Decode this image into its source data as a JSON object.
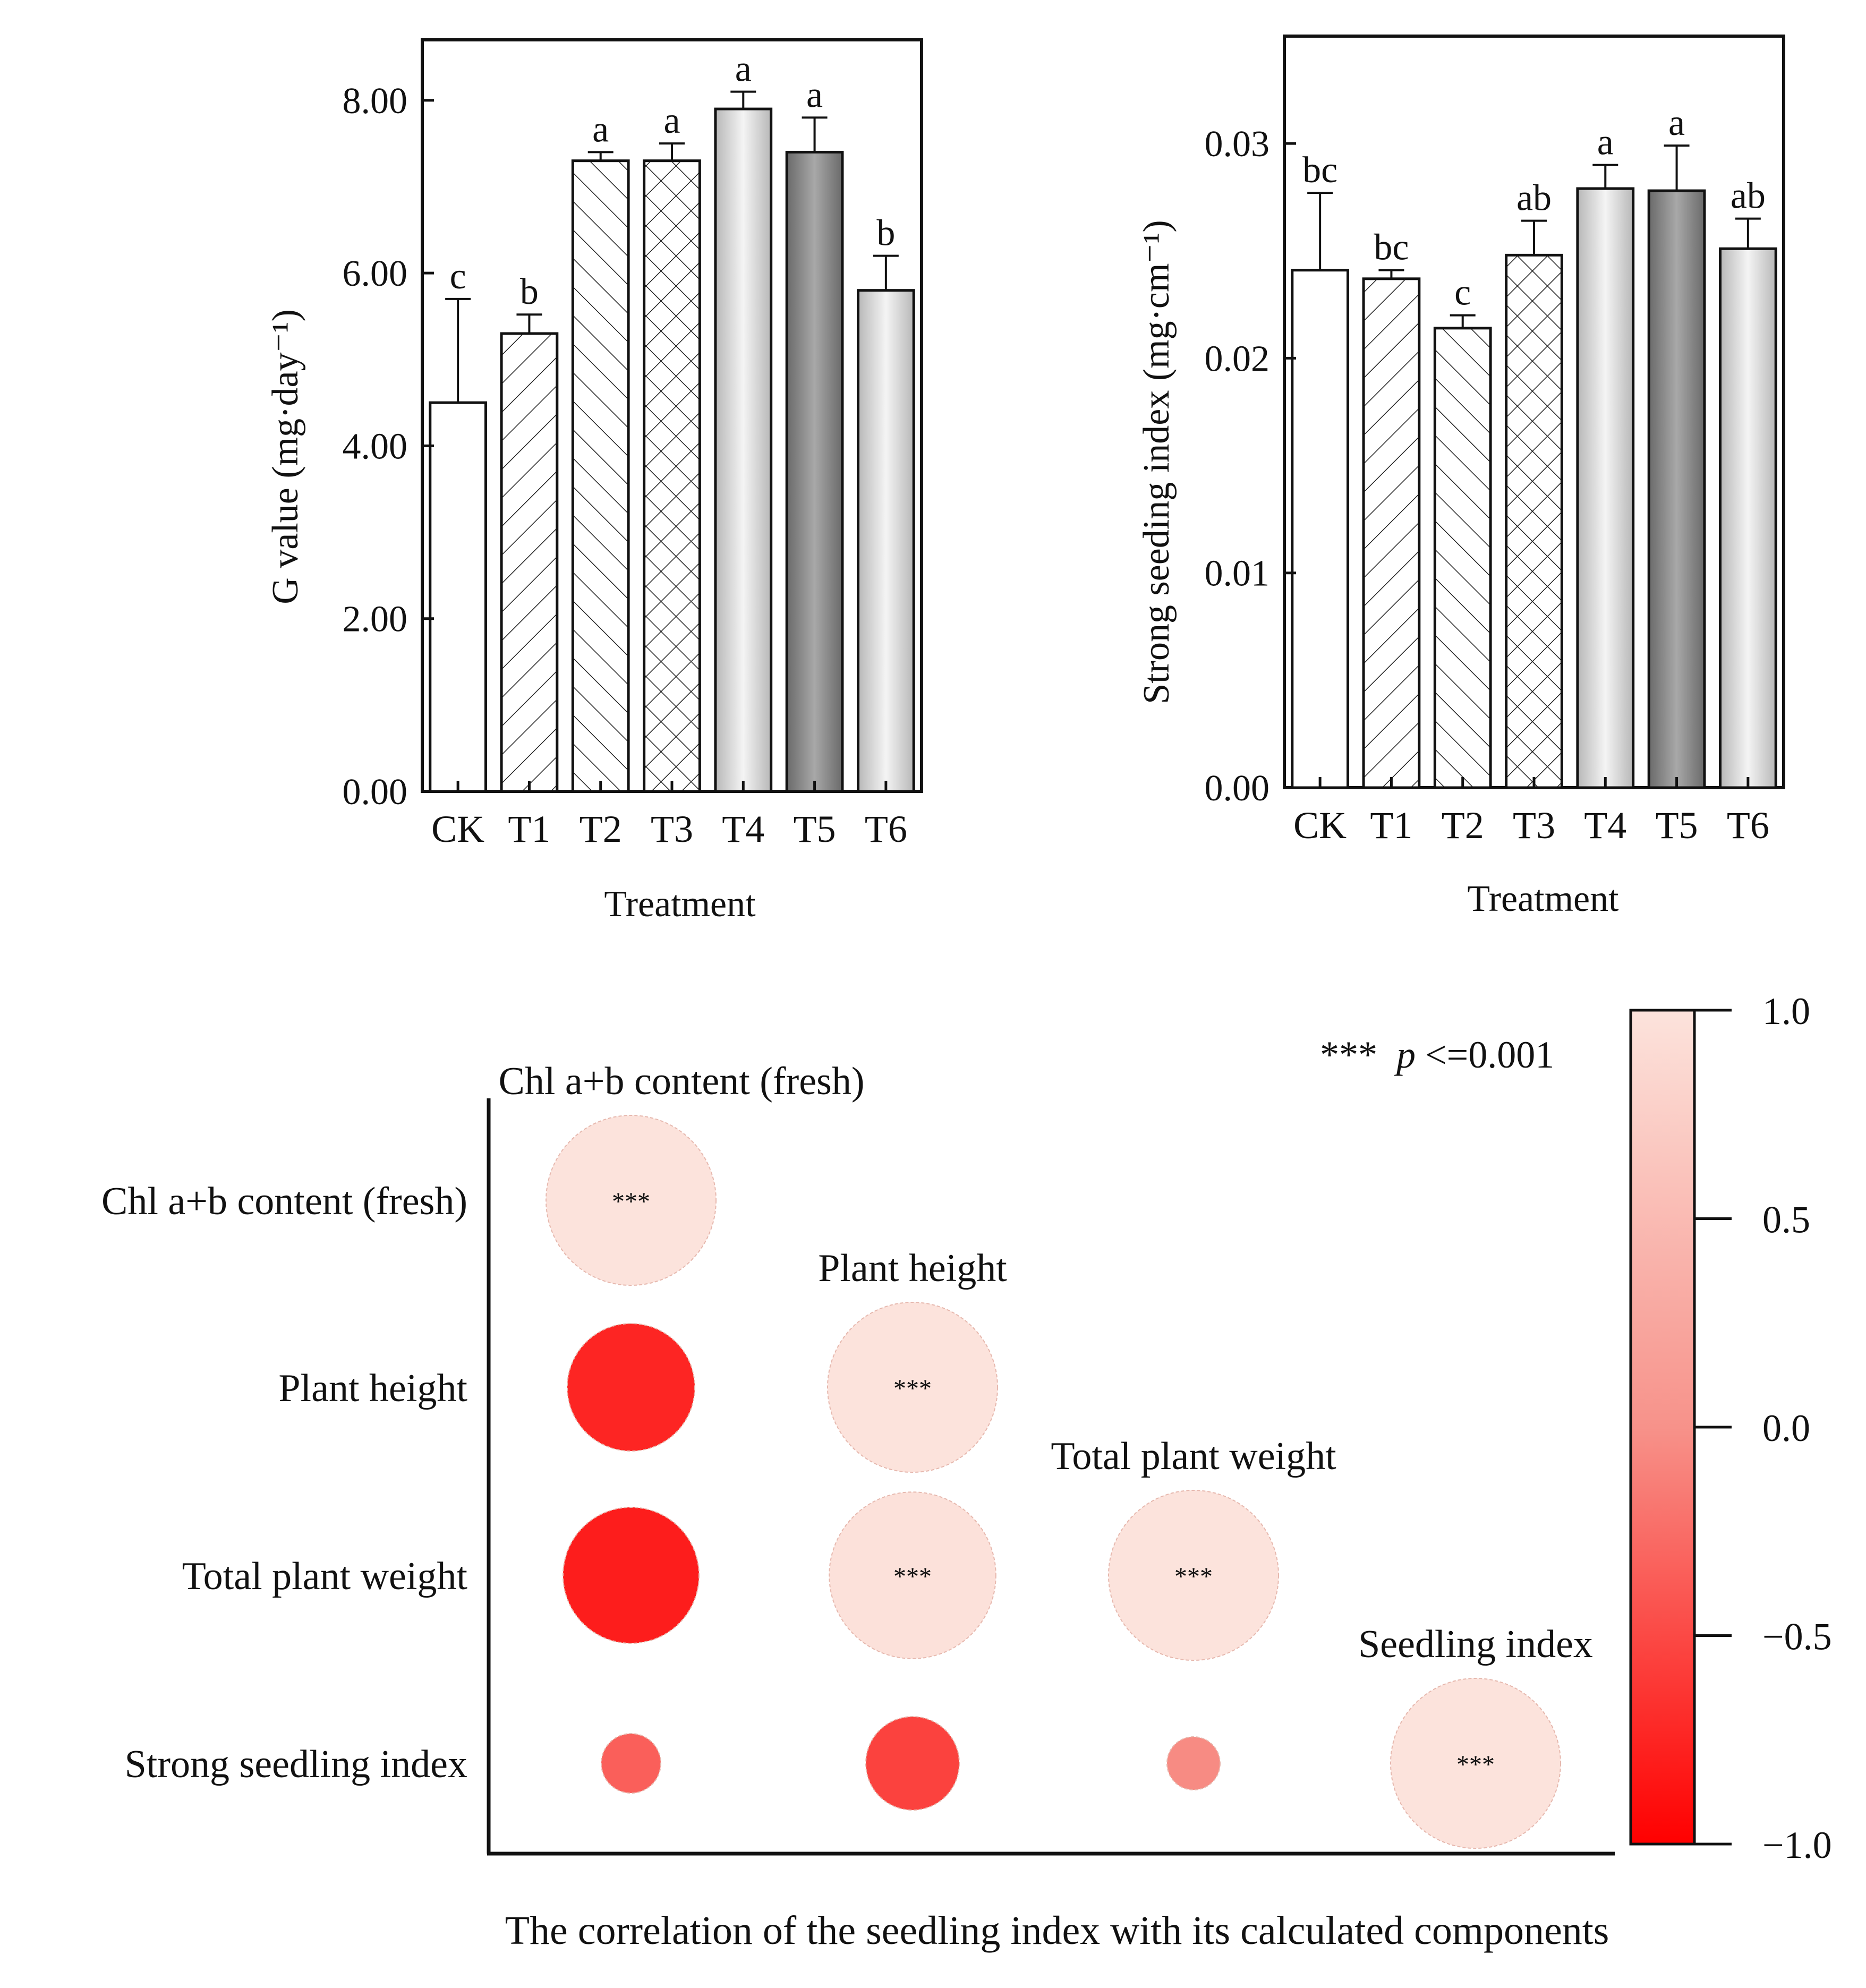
{
  "chart_data": [
    {
      "type": "bar",
      "title": "",
      "xlabel": "Treatment",
      "ylabel": "G value (mg·day⁻¹)",
      "ylim": [
        0,
        8.7
      ],
      "yticks": [
        "0.00",
        "2.00",
        "4.00",
        "6.00",
        "8.00"
      ],
      "ytick_values": [
        0,
        2,
        4,
        6,
        8
      ],
      "categories": [
        "CK",
        "T1",
        "T2",
        "T3",
        "T4",
        "T5",
        "T6"
      ],
      "values": [
        4.5,
        5.3,
        7.3,
        7.3,
        7.9,
        7.4,
        5.8
      ],
      "errors": [
        1.2,
        0.22,
        0.1,
        0.2,
        0.2,
        0.4,
        0.4
      ],
      "letters": [
        "c",
        "b",
        "a",
        "a",
        "a",
        "a",
        "b"
      ],
      "fills": [
        "white",
        "hatch",
        "hatch-back",
        "crosshatch",
        "gradient-light",
        "gradient-dark",
        "gradient-light"
      ]
    },
    {
      "type": "bar",
      "title": "",
      "xlabel": "Treatment",
      "ylabel": "Strong seeding index (mg·cm⁻¹)",
      "ylim": [
        0,
        0.035
      ],
      "yticks": [
        "0.00",
        "0.01",
        "0.02",
        "0.03"
      ],
      "ytick_values": [
        0,
        0.01,
        0.02,
        0.03
      ],
      "categories": [
        "CK",
        "T1",
        "T2",
        "T3",
        "T4",
        "T5",
        "T6"
      ],
      "values": [
        0.0241,
        0.0237,
        0.0214,
        0.0248,
        0.0279,
        0.0278,
        0.0251
      ],
      "errors": [
        0.0036,
        0.0004,
        0.0006,
        0.0016,
        0.0011,
        0.0021,
        0.0014
      ],
      "letters": [
        "bc",
        "bc",
        "c",
        "ab",
        "a",
        "a",
        "ab"
      ],
      "fills": [
        "white",
        "hatch",
        "hatch-back",
        "crosshatch",
        "gradient-light",
        "gradient-dark",
        "gradient-light"
      ]
    },
    {
      "type": "heatmap",
      "title": "The correlation of the seedling index with its calculated components",
      "variables": [
        "Chl a+b content (fresh)",
        "Plant height",
        "Total plant weight",
        "Strong seedling index"
      ],
      "diagonal_labels": [
        "Chl a+b content (fresh)",
        "Plant height",
        "Total plant weight",
        "Seedling index"
      ],
      "matrix": [
        [
          1.0,
          null,
          null,
          null
        ],
        [
          -0.75,
          1.0,
          null,
          null
        ],
        [
          -0.8,
          0.98,
          1.0,
          null
        ],
        [
          -0.35,
          -0.55,
          -0.05,
          1.0
        ]
      ],
      "significance": [
        [
          "***",
          null,
          null,
          null
        ],
        [
          "",
          "***",
          null,
          null
        ],
        [
          "",
          "***",
          "***",
          null
        ],
        [
          "",
          "",
          "",
          "***"
        ]
      ],
      "colorbar": {
        "range": [
          -1.0,
          1.0
        ],
        "ticks": [
          "1.0",
          "0.5",
          "0.0",
          "−0.5",
          "−1.0"
        ],
        "tick_values": [
          1.0,
          0.5,
          0.0,
          -0.5,
          -1.0
        ],
        "low_color": "#ff0000",
        "high_color": "#fce3dc"
      },
      "legend_stars": "***",
      "legend_p": "p",
      "legend_rest": "<=0.001"
    }
  ]
}
